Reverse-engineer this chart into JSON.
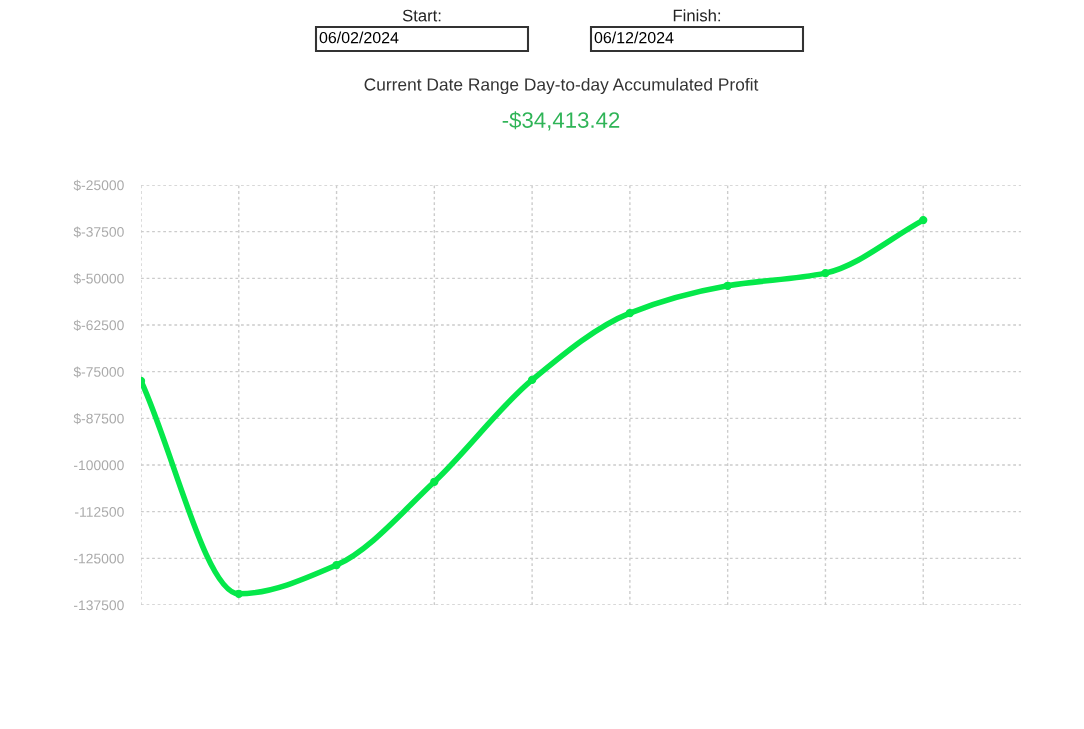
{
  "chart_data": {
    "type": "line",
    "title": "Current Date Range Day-to-day Accumulated Profit",
    "subtitle": "-$34,413.42",
    "annotations": [
      "Start:",
      "06/02/2024",
      "Finish:",
      "06/12/2024"
    ],
    "categories": [
      null,
      null,
      null,
      null,
      null,
      null,
      null,
      null,
      null
    ],
    "series": [
      {
        "color": "#05e84a",
        "values": [
          -77500,
          -134500,
          -126800,
          -104500,
          -77200,
          -59300,
          -52000,
          -48600,
          -34400
        ]
      }
    ],
    "ylim": [
      -137500,
      -25000
    ],
    "yticks": [
      {
        "value": -25000,
        "label": "$-25000"
      },
      {
        "value": -37500,
        "label": "$-37500"
      },
      {
        "value": -50000,
        "label": "$-50000"
      },
      {
        "value": -62500,
        "label": "$-62500"
      },
      {
        "value": -75000,
        "label": "$-75000"
      },
      {
        "value": -87500,
        "label": "$-87500"
      },
      -100000,
      -112500,
      -125000,
      -137500
    ],
    "grid": true,
    "marker": "circle",
    "line_style": "solid"
  }
}
